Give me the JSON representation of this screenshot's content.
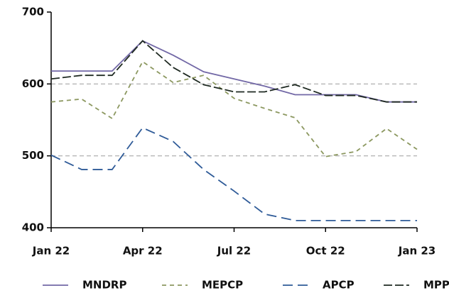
{
  "chart_data": {
    "type": "line",
    "categories": [
      "Jan 22",
      null,
      null,
      "Apr 22",
      null,
      null,
      "Jul 22",
      null,
      null,
      "Oct 22",
      null,
      null,
      "Jan 23"
    ],
    "series": [
      {
        "name": "MNDRP",
        "color": "#7268a6",
        "dash": "none",
        "values": [
          618,
          618,
          618,
          660,
          640,
          617,
          607,
          597,
          585,
          585,
          585,
          575,
          575
        ]
      },
      {
        "name": "MEPCP",
        "color": "#8c9860",
        "dash": "6,5",
        "values": [
          575,
          579,
          552,
          631,
          602,
          612,
          580,
          566,
          553,
          499,
          506,
          538,
          509
        ]
      },
      {
        "name": "APCP",
        "color": "#2f5b98",
        "dash": "14,7",
        "values": [
          501,
          481,
          481,
          539,
          520,
          481,
          451,
          419,
          410,
          410,
          410,
          410,
          410
        ]
      },
      {
        "name": "MPP",
        "color": "#1f2a22",
        "dash": "12,4",
        "values": [
          607,
          612,
          612,
          660,
          623,
          599,
          589,
          589,
          599,
          584,
          584,
          575,
          575
        ]
      }
    ],
    "ylim": [
      400,
      700
    ],
    "yticks": [
      400,
      500,
      600,
      700
    ],
    "grid": true
  }
}
